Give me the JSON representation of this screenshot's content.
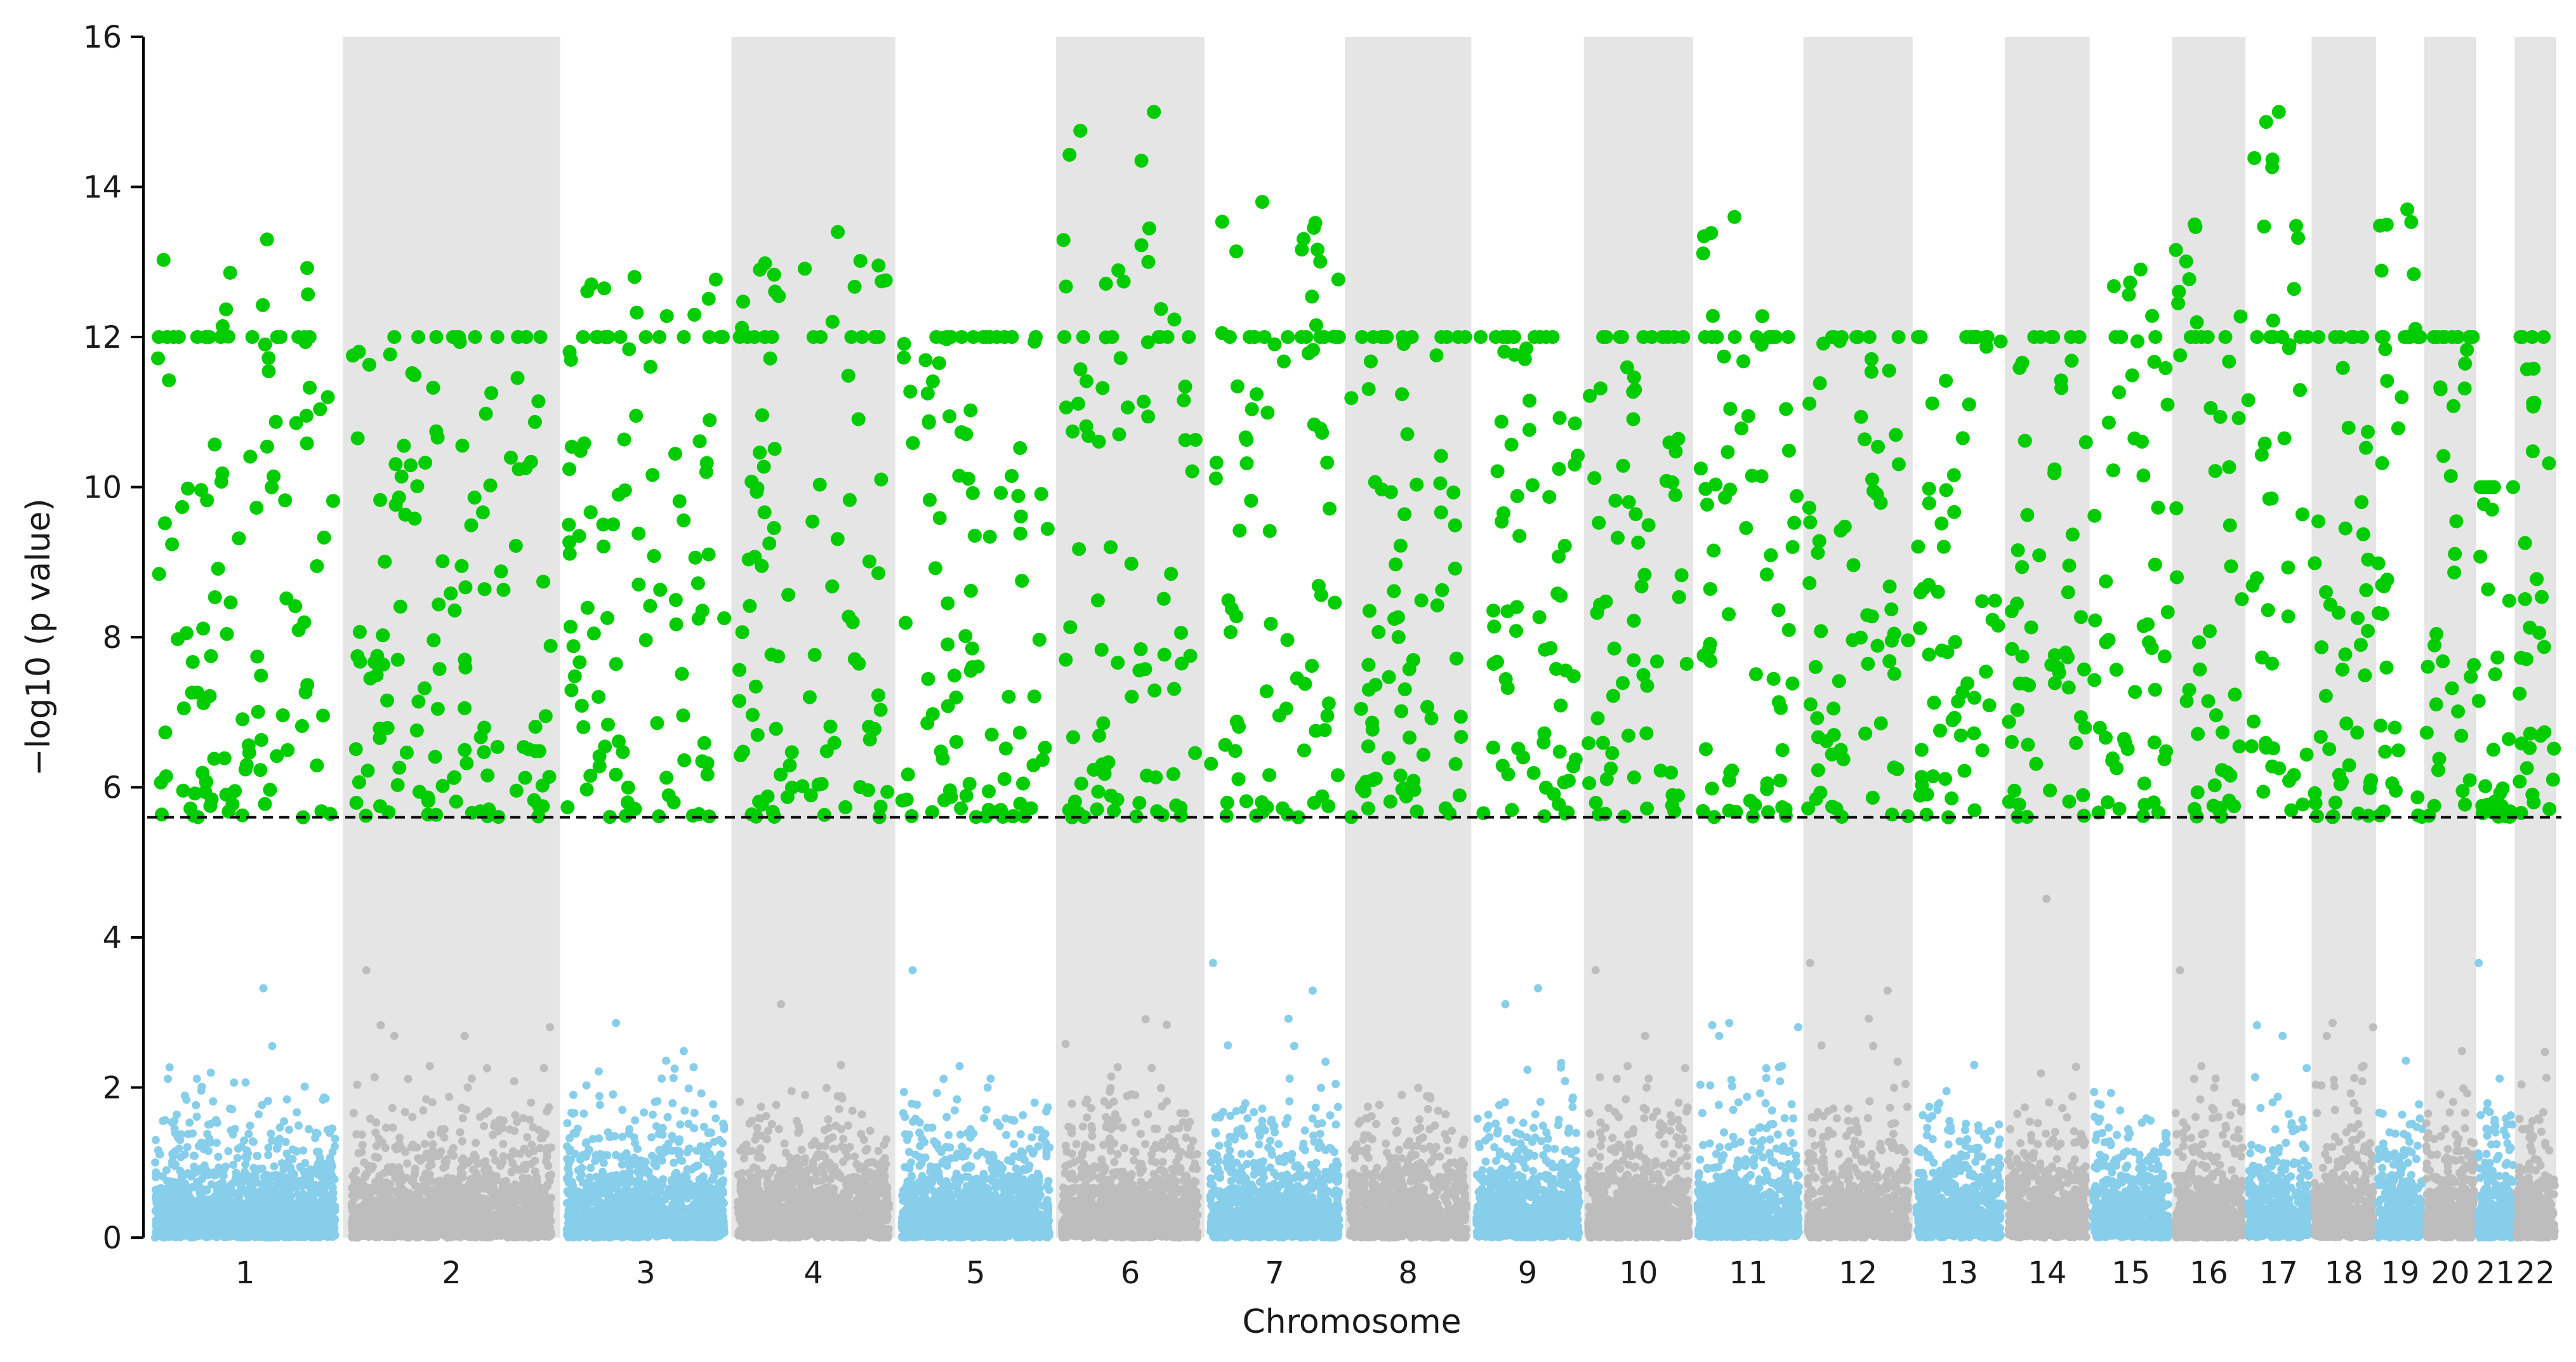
{
  "chart_data": {
    "type": "scatter",
    "subtype": "manhattan",
    "title": "",
    "xlabel": "Chromosome",
    "ylabel": "−log10 (p value)",
    "ylim": [
      0,
      16
    ],
    "yticks": [
      0,
      2,
      4,
      6,
      8,
      10,
      12,
      14,
      16
    ],
    "significance_threshold": 5.6,
    "grid": false,
    "colors": {
      "odd_chromosome_points": "#87ceeb",
      "even_chromosome_points": "#bdbdbd",
      "significant_points": "#00cc00",
      "even_chromosome_band": "#e5e5e5",
      "threshold_line": "#111111"
    },
    "chromosomes": [
      {
        "label": "1",
        "start": 0,
        "end": 2.4
      },
      {
        "label": "2",
        "start": 2.4,
        "end": 5.06
      },
      {
        "label": "3",
        "start": 5.06,
        "end": 7.16
      },
      {
        "label": "4",
        "start": 7.16,
        "end": 9.17
      },
      {
        "label": "5",
        "start": 9.17,
        "end": 11.14
      },
      {
        "label": "6",
        "start": 11.14,
        "end": 12.96
      },
      {
        "label": "7",
        "start": 12.96,
        "end": 14.68
      },
      {
        "label": "8",
        "start": 14.68,
        "end": 16.23
      },
      {
        "label": "9",
        "start": 16.23,
        "end": 17.61
      },
      {
        "label": "10",
        "start": 17.61,
        "end": 18.95
      },
      {
        "label": "11",
        "start": 18.95,
        "end": 20.3
      },
      {
        "label": "12",
        "start": 20.3,
        "end": 21.64
      },
      {
        "label": "13",
        "start": 21.64,
        "end": 22.77
      },
      {
        "label": "14",
        "start": 22.77,
        "end": 23.81
      },
      {
        "label": "15",
        "start": 23.81,
        "end": 24.82
      },
      {
        "label": "16",
        "start": 24.82,
        "end": 25.72
      },
      {
        "label": "17",
        "start": 25.72,
        "end": 26.53
      },
      {
        "label": "18",
        "start": 26.53,
        "end": 27.32
      },
      {
        "label": "19",
        "start": 27.32,
        "end": 27.91
      },
      {
        "label": "20",
        "start": 27.91,
        "end": 28.55
      },
      {
        "label": "21",
        "start": 28.55,
        "end": 29.02
      },
      {
        "label": "22",
        "start": 29.02,
        "end": 29.53
      }
    ],
    "significant_peaks": [
      {
        "chr": "1",
        "max": 13.3
      },
      {
        "chr": "2",
        "max": 12.0
      },
      {
        "chr": "3",
        "max": 12.8
      },
      {
        "chr": "4",
        "max": 13.4
      },
      {
        "chr": "5",
        "max": 12.0
      },
      {
        "chr": "6",
        "max": 15.0
      },
      {
        "chr": "7",
        "max": 13.8
      },
      {
        "chr": "8",
        "max": 12.0
      },
      {
        "chr": "9",
        "max": 12.0
      },
      {
        "chr": "10",
        "max": 12.0
      },
      {
        "chr": "11",
        "max": 13.6
      },
      {
        "chr": "12",
        "max": 12.0
      },
      {
        "chr": "13",
        "max": 12.0
      },
      {
        "chr": "14",
        "max": 12.0
      },
      {
        "chr": "15",
        "max": 12.9
      },
      {
        "chr": "16",
        "max": 13.5
      },
      {
        "chr": "17",
        "max": 15.0
      },
      {
        "chr": "18",
        "max": 12.0
      },
      {
        "chr": "19",
        "max": 13.7
      },
      {
        "chr": "20",
        "max": 12.0
      },
      {
        "chr": "21",
        "max": 10.0
      },
      {
        "chr": "22",
        "max": 12.0
      }
    ]
  }
}
